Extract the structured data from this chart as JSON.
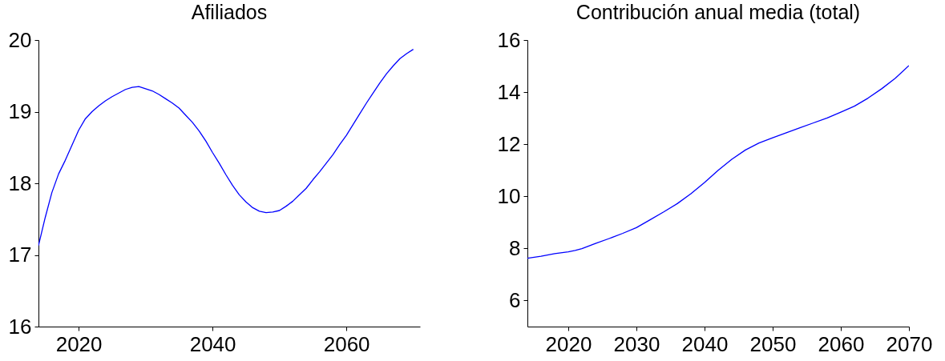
{
  "chart_data": [
    {
      "type": "line",
      "title": "Afiliados",
      "x": [
        2014,
        2015,
        2016,
        2017,
        2018,
        2019,
        2020,
        2021,
        2022,
        2023,
        2024,
        2025,
        2026,
        2027,
        2028,
        2029,
        2030,
        2031,
        2032,
        2033,
        2034,
        2035,
        2036,
        2037,
        2038,
        2039,
        2040,
        2041,
        2042,
        2043,
        2044,
        2045,
        2046,
        2047,
        2048,
        2049,
        2050,
        2051,
        2052,
        2053,
        2054,
        2055,
        2056,
        2057,
        2058,
        2059,
        2060,
        2061,
        2062,
        2063,
        2064,
        2065,
        2066,
        2067,
        2068,
        2069,
        2070
      ],
      "series": [
        {
          "color": "#0000ff",
          "values": [
            17.13,
            17.52,
            17.87,
            18.13,
            18.32,
            18.53,
            18.74,
            18.9,
            19.0,
            19.08,
            19.15,
            19.21,
            19.26,
            19.31,
            19.34,
            19.35,
            19.32,
            19.29,
            19.24,
            19.18,
            19.12,
            19.05,
            18.95,
            18.85,
            18.73,
            18.59,
            18.43,
            18.28,
            18.12,
            17.97,
            17.84,
            17.74,
            17.66,
            17.61,
            17.59,
            17.6,
            17.62,
            17.68,
            17.75,
            17.84,
            17.93,
            18.05,
            18.16,
            18.28,
            18.4,
            18.54,
            18.67,
            18.82,
            18.97,
            19.12,
            19.26,
            19.4,
            19.53,
            19.64,
            19.74,
            19.81,
            19.87
          ]
        }
      ],
      "xlim": [
        2014,
        2071
      ],
      "xticks": [
        2020,
        2040,
        2060
      ],
      "ylim": [
        16,
        20
      ],
      "yticks": [
        16,
        17,
        18,
        19,
        20
      ]
    },
    {
      "type": "line",
      "title": "Contribución anual media (total)",
      "x": [
        2014,
        2016,
        2018,
        2020,
        2021,
        2022,
        2024,
        2026,
        2028,
        2030,
        2032,
        2034,
        2036,
        2038,
        2040,
        2042,
        2044,
        2046,
        2048,
        2050,
        2052,
        2054,
        2056,
        2058,
        2060,
        2062,
        2064,
        2066,
        2068,
        2070
      ],
      "series": [
        {
          "color": "#0000ff",
          "values": [
            7.62,
            7.7,
            7.8,
            7.87,
            7.92,
            7.99,
            8.19,
            8.38,
            8.58,
            8.8,
            9.1,
            9.4,
            9.72,
            10.1,
            10.53,
            11.0,
            11.42,
            11.78,
            12.05,
            12.25,
            12.44,
            12.63,
            12.82,
            13.01,
            13.23,
            13.46,
            13.77,
            14.13,
            14.53,
            15.02
          ]
        }
      ],
      "xlim": [
        2014,
        2070
      ],
      "xticks": [
        2020,
        2030,
        2040,
        2050,
        2060,
        2070
      ],
      "ylim": [
        5,
        16
      ],
      "yticks": [
        6,
        8,
        10,
        12,
        14,
        16
      ]
    }
  ]
}
